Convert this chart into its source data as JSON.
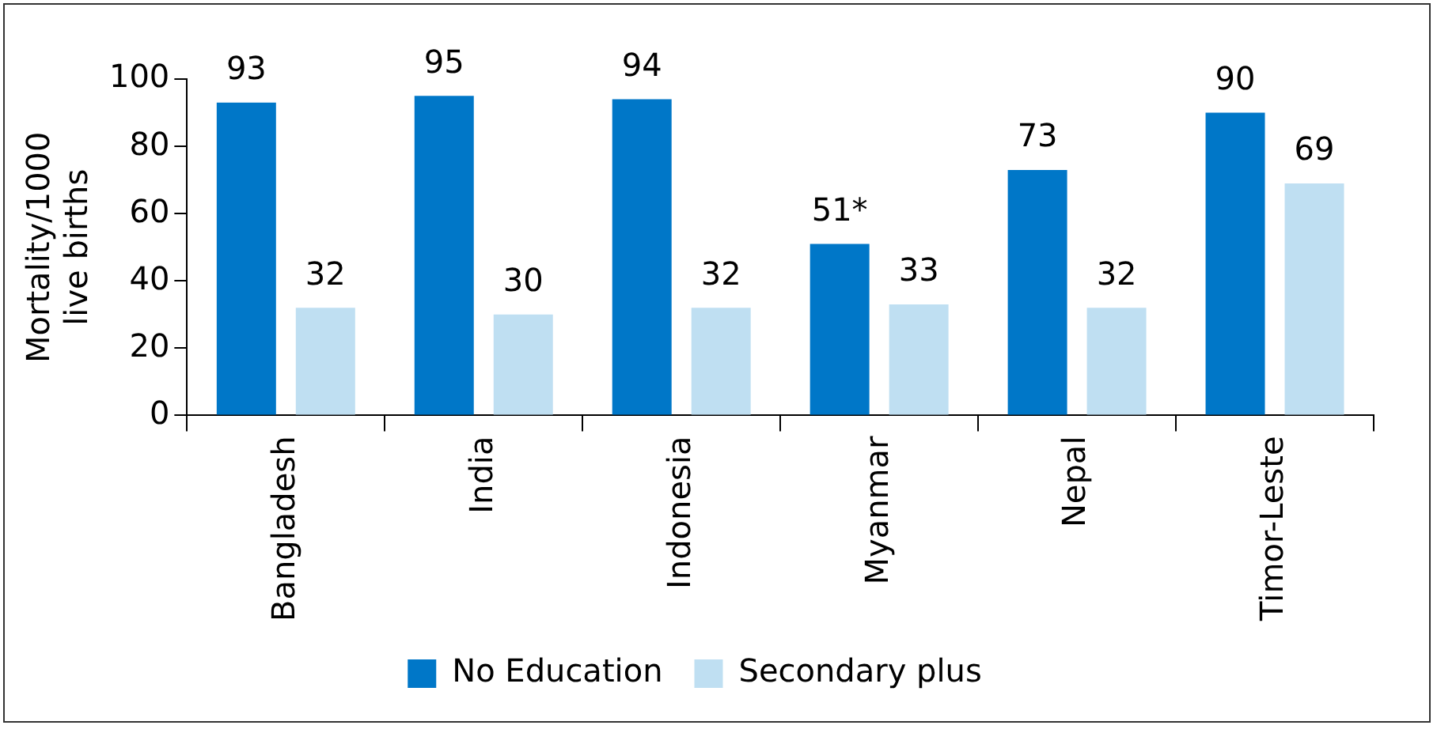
{
  "chart_data": {
    "type": "bar",
    "ylabel": "Mortality/1000 live births",
    "categories": [
      "Bangladesh",
      "India",
      "Indonesia",
      "Myanmar",
      "Nepal",
      "Timor-Leste"
    ],
    "series": [
      {
        "name": "No Education",
        "color": "#0077c8",
        "values": [
          93,
          95,
          94,
          51,
          73,
          90
        ],
        "value_labels": [
          "93",
          "95",
          "94",
          "51*",
          "73",
          "90"
        ]
      },
      {
        "name": "Secondary plus",
        "color": "#bfdff2",
        "values": [
          32,
          30,
          32,
          33,
          32,
          69
        ],
        "value_labels": [
          "32",
          "30",
          "32",
          "33",
          "32",
          "69"
        ]
      }
    ],
    "ylim": [
      0,
      100
    ],
    "yticks": [
      0,
      20,
      40,
      60,
      80,
      100
    ],
    "grid": false,
    "legend": "bottom"
  }
}
